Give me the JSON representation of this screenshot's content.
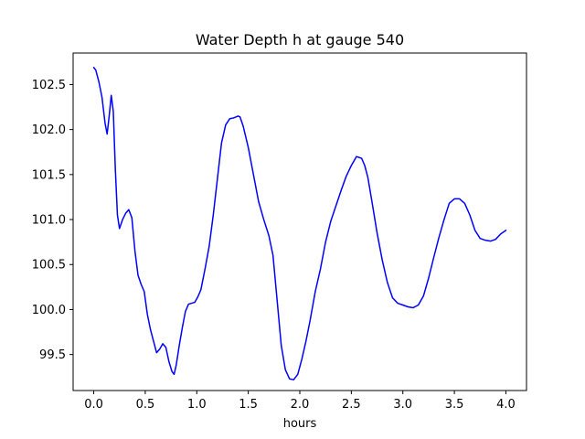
{
  "chart_data": {
    "type": "line",
    "title": "Water Depth h at gauge 540",
    "xlabel": "hours",
    "ylabel": "",
    "xlim": [
      -0.2,
      4.2
    ],
    "ylim": [
      99.1,
      102.85
    ],
    "grid": false,
    "xticks": [
      0.0,
      0.5,
      1.0,
      1.5,
      2.0,
      2.5,
      3.0,
      3.5,
      4.0
    ],
    "xtick_labels": [
      "0.0",
      "0.5",
      "1.0",
      "1.5",
      "2.0",
      "2.5",
      "3.0",
      "3.5",
      "4.0"
    ],
    "yticks": [
      99.5,
      100.0,
      100.5,
      101.0,
      101.5,
      102.0,
      102.5
    ],
    "ytick_labels": [
      "99.5",
      "100.0",
      "100.5",
      "101.0",
      "101.5",
      "102.0",
      "102.5"
    ],
    "series": [
      {
        "color": "#0000ff",
        "x": [
          0.0,
          0.02,
          0.05,
          0.08,
          0.11,
          0.13,
          0.15,
          0.17,
          0.19,
          0.21,
          0.23,
          0.25,
          0.28,
          0.31,
          0.34,
          0.37,
          0.4,
          0.43,
          0.46,
          0.49,
          0.52,
          0.55,
          0.58,
          0.61,
          0.64,
          0.67,
          0.7,
          0.73,
          0.76,
          0.78,
          0.8,
          0.83,
          0.86,
          0.89,
          0.92,
          0.95,
          0.98,
          1.01,
          1.04,
          1.08,
          1.12,
          1.16,
          1.2,
          1.24,
          1.28,
          1.32,
          1.36,
          1.4,
          1.42,
          1.45,
          1.5,
          1.55,
          1.6,
          1.65,
          1.7,
          1.74,
          1.78,
          1.82,
          1.86,
          1.9,
          1.94,
          1.98,
          2.02,
          2.06,
          2.1,
          2.15,
          2.2,
          2.25,
          2.3,
          2.35,
          2.4,
          2.45,
          2.5,
          2.55,
          2.6,
          2.63,
          2.66,
          2.7,
          2.75,
          2.8,
          2.85,
          2.9,
          2.95,
          3.0,
          3.05,
          3.1,
          3.15,
          3.2,
          3.25,
          3.3,
          3.35,
          3.4,
          3.45,
          3.5,
          3.55,
          3.6,
          3.65,
          3.7,
          3.75,
          3.8,
          3.85,
          3.9,
          3.95,
          4.0
        ],
        "y": [
          102.69,
          102.66,
          102.53,
          102.36,
          102.07,
          101.95,
          102.15,
          102.38,
          102.2,
          101.55,
          101.05,
          100.9,
          101.0,
          101.07,
          101.11,
          101.02,
          100.65,
          100.38,
          100.28,
          100.2,
          99.95,
          99.78,
          99.65,
          99.52,
          99.56,
          99.62,
          99.58,
          99.42,
          99.31,
          99.28,
          99.38,
          99.6,
          99.8,
          99.98,
          100.06,
          100.07,
          100.08,
          100.14,
          100.22,
          100.45,
          100.7,
          101.05,
          101.45,
          101.85,
          102.05,
          102.12,
          102.13,
          102.15,
          102.14,
          102.04,
          101.8,
          101.5,
          101.2,
          101.0,
          100.82,
          100.6,
          100.1,
          99.6,
          99.33,
          99.23,
          99.22,
          99.28,
          99.45,
          99.65,
          99.88,
          100.2,
          100.45,
          100.75,
          100.98,
          101.15,
          101.32,
          101.48,
          101.6,
          101.7,
          101.68,
          101.6,
          101.47,
          101.2,
          100.85,
          100.55,
          100.3,
          100.13,
          100.07,
          100.05,
          100.03,
          100.02,
          100.05,
          100.15,
          100.35,
          100.58,
          100.8,
          101.0,
          101.18,
          101.23,
          101.23,
          101.18,
          101.05,
          100.88,
          100.79,
          100.77,
          100.76,
          100.78,
          100.84,
          100.88
        ]
      }
    ]
  }
}
